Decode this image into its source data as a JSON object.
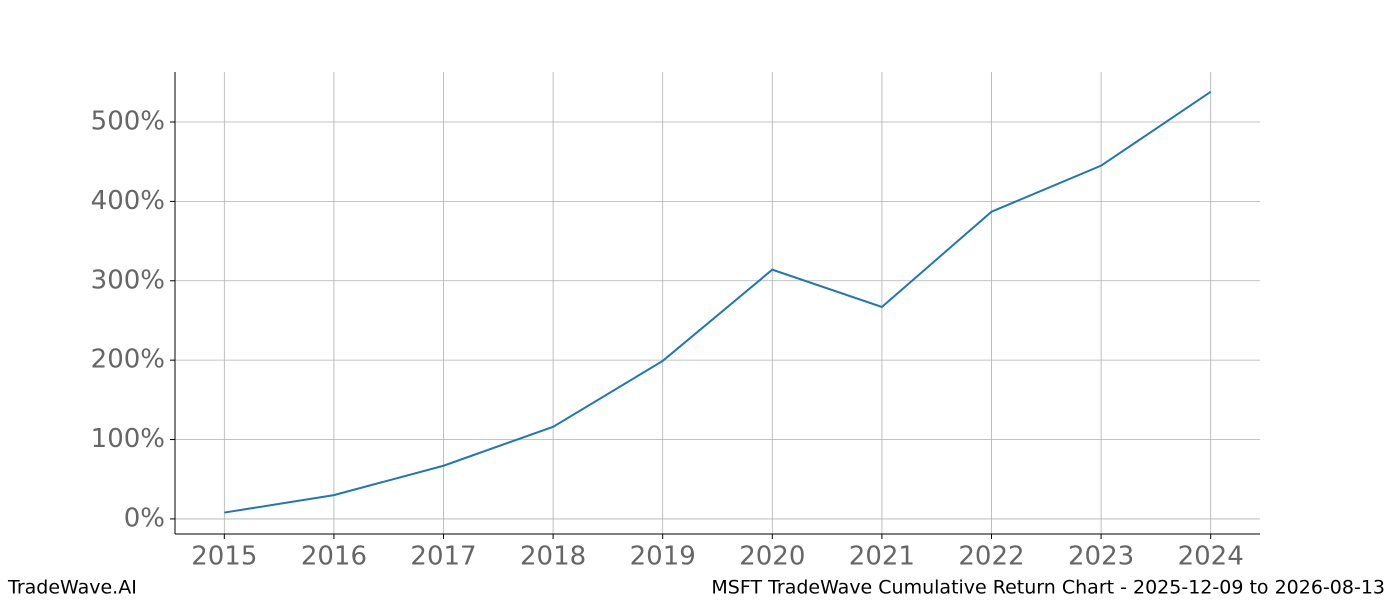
{
  "chart_data": {
    "type": "line",
    "title": "MSFT TradeWave Cumulative Return Chart - 2025-12-09 to 2026-08-13",
    "source": "TradeWave.AI",
    "x": [
      2015,
      2016,
      2017,
      2018,
      2019,
      2020,
      2021,
      2022,
      2023,
      2024
    ],
    "series": [
      {
        "name": "MSFT",
        "color": "#1f77b4",
        "values": [
          8,
          30,
          67,
          116,
          199,
          314,
          267,
          387,
          445,
          538
        ]
      }
    ],
    "xlim": [
      2014.55,
      2024.45
    ],
    "xticks": [
      2015,
      2016,
      2017,
      2018,
      2019,
      2020,
      2021,
      2022,
      2023,
      2024
    ],
    "ylim": [
      -19,
      563
    ],
    "yticks": [
      {
        "value": 0,
        "label": "0%"
      },
      {
        "value": 100,
        "label": "100%"
      },
      {
        "value": 200,
        "label": "200%"
      },
      {
        "value": 300,
        "label": "300%"
      },
      {
        "value": 400,
        "label": "400%"
      },
      {
        "value": 500,
        "label": "500%"
      }
    ],
    "grid": true
  }
}
